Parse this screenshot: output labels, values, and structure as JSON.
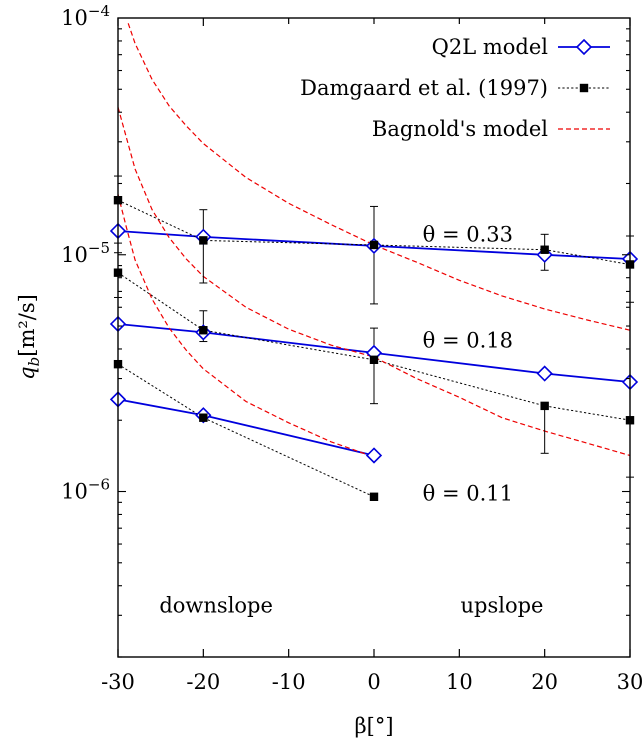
{
  "chart_data": {
    "type": "line",
    "title": "",
    "xlabel": "β[°]",
    "ylabel": "q_b[m²/s]",
    "xlim": [
      -30,
      30
    ],
    "ylim": [
      2e-07,
      0.0001
    ],
    "yscale": "log",
    "grid": false,
    "legend_position": "top-right",
    "x_ticks": [
      -30,
      -20,
      -10,
      0,
      10,
      20,
      30
    ],
    "x_tick_labels": [
      "-30",
      "-20",
      "-10",
      "0",
      "10",
      "20",
      "30"
    ],
    "y_ticks": [
      1e-06,
      1e-05,
      0.0001
    ],
    "y_tick_labels": [
      {
        "base": "10",
        "exp": "−6"
      },
      {
        "base": "10",
        "exp": "−5"
      },
      {
        "base": "10",
        "exp": "−4"
      }
    ],
    "series": [
      {
        "name": "Q2L model",
        "style": "q2l",
        "color": "#0000dd",
        "groups": [
          {
            "x": [
              -30,
              -20,
              0,
              20,
              30
            ],
            "y": [
              1.26e-05,
              1.19e-05,
              1.09e-05,
              1e-05,
              9.6e-06
            ]
          },
          {
            "x": [
              -30,
              -20,
              0,
              20,
              30
            ],
            "y": [
              5.1e-06,
              4.7e-06,
              3.85e-06,
              3.15e-06,
              2.9e-06
            ]
          },
          {
            "x": [
              -30,
              -20,
              0
            ],
            "y": [
              2.45e-06,
              2.1e-06,
              1.42e-06
            ]
          }
        ]
      },
      {
        "name": "Damgaard et al. (1997)",
        "style": "damgaard",
        "color": "#000000",
        "groups": [
          {
            "x": [
              -30,
              -20,
              0,
              20,
              30
            ],
            "y": [
              1.7e-05,
              1.15e-05,
              1.1e-05,
              1.05e-05,
              9.1e-06
            ],
            "err_lo": [
              1.12e-05,
              7.6e-06,
              6.2e-06,
              8.6e-06,
              6.3e-06
            ],
            "err_hi": [
              2.15e-05,
              1.55e-05,
              1.6e-05,
              1.22e-05,
              1.2e-05
            ]
          },
          {
            "x": [
              -30,
              -20,
              0,
              20,
              30
            ],
            "y": [
              8.4e-06,
              4.8e-06,
              3.6e-06,
              2.3e-06,
              2e-06
            ],
            "err_lo": [
              6.6e-06,
              4.3e-06,
              2.35e-06,
              1.45e-06,
              1.15e-06
            ],
            "err_hi": [
              1.02e-05,
              5.8e-06,
              4.9e-06,
              2.3e-06,
              2e-06
            ]
          },
          {
            "x": [
              -30,
              -20,
              0
            ],
            "y": [
              3.45e-06,
              2.05e-06,
              9.5e-07
            ]
          }
        ]
      },
      {
        "name": "Bagnold's model",
        "style": "bagnold",
        "color": "#ee0000",
        "groups": [
          {
            "x": [
              -28.8,
              -28,
              -26,
              -24,
              -22,
              -20,
              -15,
              -10,
              -5,
              0,
              5,
              10,
              15,
              20,
              25,
              30
            ],
            "y": [
              9.5e-05,
              7.8e-05,
              5.5e-05,
              4.25e-05,
              3.5e-05,
              2.95e-05,
              2.12e-05,
              1.65e-05,
              1.34e-05,
              1.1e-05,
              9.3e-06,
              7.8e-06,
              6.7e-06,
              5.9e-06,
              5.3e-06,
              4.8e-06
            ]
          },
          {
            "x": [
              -30,
              -28,
              -26,
              -24,
              -22,
              -20,
              -15,
              -10,
              -5,
              0,
              5,
              10,
              15,
              20,
              25,
              30
            ],
            "y": [
              4.2e-05,
              2.3e-05,
              1.55e-05,
              1.18e-05,
              9.6e-06,
              8.1e-06,
              6e-06,
              4.85e-06,
              4.15e-06,
              3.7e-06,
              3e-06,
              2.5e-06,
              2.05e-06,
              1.8e-06,
              1.6e-06,
              1.42e-06
            ]
          },
          {
            "x": [
              -30,
              -29,
              -28,
              -26,
              -24,
              -22,
              -20,
              -15,
              -10,
              -5,
              0
            ],
            "y": [
              1.8e-05,
              1.3e-05,
              9.5e-06,
              6.5e-06,
              4.9e-06,
              3.95e-06,
              3.3e-06,
              2.4e-06,
              1.95e-06,
              1.62e-06,
              1.4e-06
            ]
          }
        ]
      }
    ],
    "annotations": [
      {
        "text": "θ = 0.33",
        "x": 11,
        "y": 1.22e-05
      },
      {
        "text": "θ = 0.18",
        "x": 11,
        "y": 4.35e-06
      },
      {
        "text": "θ = 0.11",
        "x": 11,
        "y": 9.8e-07
      },
      {
        "text": "downslope",
        "x": -18.5,
        "y": 3.3e-07
      },
      {
        "text": "upslope",
        "x": 15,
        "y": 3.3e-07
      }
    ]
  }
}
